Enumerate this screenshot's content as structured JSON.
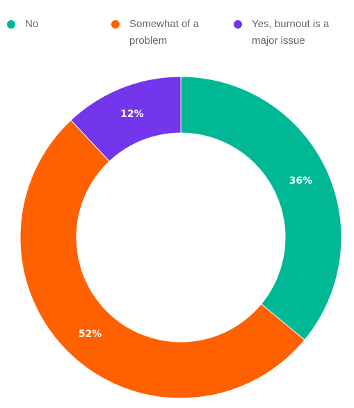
{
  "chart_data": {
    "type": "pie",
    "categories": [
      "No",
      "Somewhat of a problem",
      "Yes, burnout is a major issue"
    ],
    "values": [
      36,
      52,
      12
    ],
    "data_labels": [
      "36%",
      "52%",
      "12%"
    ],
    "colors": [
      "#00b894",
      "#ff6000",
      "#7336ec"
    ],
    "legend_position": "top",
    "donut": true,
    "title": "",
    "xlabel": "",
    "ylabel": ""
  }
}
